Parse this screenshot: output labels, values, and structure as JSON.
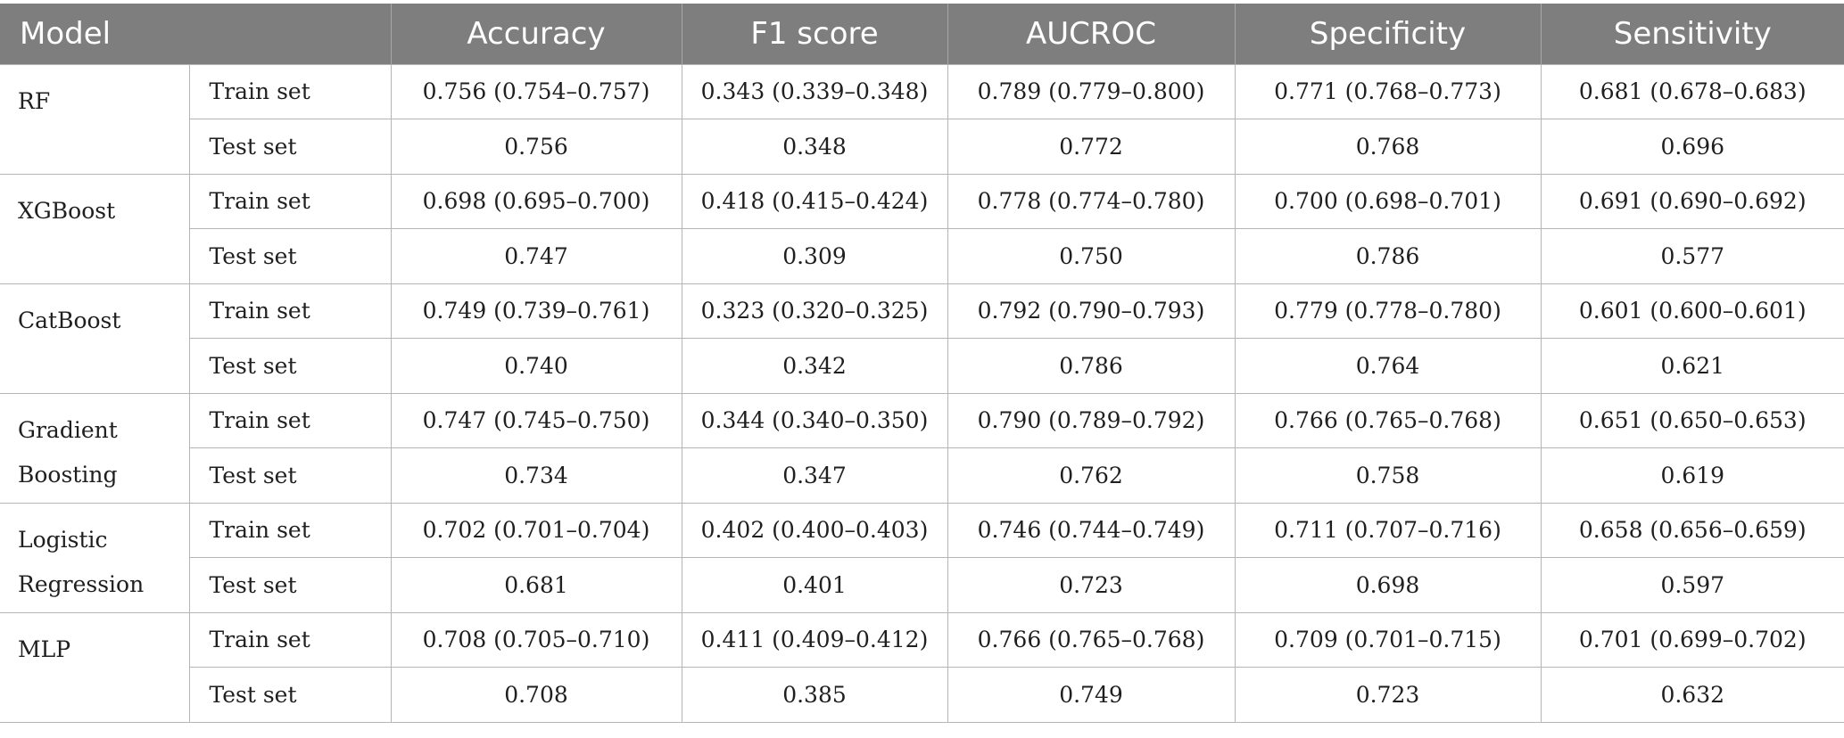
{
  "table": {
    "headers": {
      "model": "Model",
      "accuracy": "Accuracy",
      "f1": "F1 score",
      "aucroc": "AUCROC",
      "specificity": "Specificity",
      "sensitivity": "Sensitivity"
    },
    "models": [
      {
        "name": "RF",
        "rows": [
          {
            "set": "Train set",
            "accuracy": "0.756 (0.754–0.757)",
            "f1": "0.343 (0.339–0.348)",
            "aucroc": "0.789 (0.779–0.800)",
            "specificity": "0.771 (0.768–0.773)",
            "sensitivity": "0.681 (0.678–0.683)"
          },
          {
            "set": "Test set",
            "accuracy": "0.756",
            "f1": "0.348",
            "aucroc": "0.772",
            "specificity": "0.768",
            "sensitivity": "0.696"
          }
        ]
      },
      {
        "name": "XGBoost",
        "rows": [
          {
            "set": "Train set",
            "accuracy": "0.698 (0.695–0.700)",
            "f1": "0.418 (0.415–0.424)",
            "aucroc": "0.778 (0.774–0.780)",
            "specificity": "0.700 (0.698–0.701)",
            "sensitivity": "0.691 (0.690–0.692)"
          },
          {
            "set": "Test set",
            "accuracy": "0.747",
            "f1": "0.309",
            "aucroc": "0.750",
            "specificity": "0.786",
            "sensitivity": "0.577"
          }
        ]
      },
      {
        "name": "CatBoost",
        "rows": [
          {
            "set": "Train set",
            "accuracy": "0.749 (0.739–0.761)",
            "f1": "0.323 (0.320–0.325)",
            "aucroc": "0.792 (0.790–0.793)",
            "specificity": "0.779 (0.778–0.780)",
            "sensitivity": "0.601 (0.600–0.601)"
          },
          {
            "set": "Test set",
            "accuracy": "0.740",
            "f1": "0.342",
            "aucroc": "0.786",
            "specificity": "0.764",
            "sensitivity": "0.621"
          }
        ]
      },
      {
        "name": "Gradient Boosting",
        "rows": [
          {
            "set": "Train set",
            "accuracy": "0.747 (0.745–0.750)",
            "f1": "0.344 (0.340–0.350)",
            "aucroc": "0.790 (0.789–0.792)",
            "specificity": "0.766 (0.765–0.768)",
            "sensitivity": "0.651 (0.650–0.653)"
          },
          {
            "set": "Test set",
            "accuracy": "0.734",
            "f1": "0.347",
            "aucroc": "0.762",
            "specificity": "0.758",
            "sensitivity": "0.619"
          }
        ]
      },
      {
        "name": "Logistic Regression",
        "rows": [
          {
            "set": "Train set",
            "accuracy": "0.702 (0.701–0.704)",
            "f1": "0.402 (0.400–0.403)",
            "aucroc": "0.746 (0.744–0.749)",
            "specificity": "0.711 (0.707–0.716)",
            "sensitivity": "0.658 (0.656–0.659)"
          },
          {
            "set": "Test set",
            "accuracy": "0.681",
            "f1": "0.401",
            "aucroc": "0.723",
            "specificity": "0.698",
            "sensitivity": "0.597"
          }
        ]
      },
      {
        "name": "MLP",
        "rows": [
          {
            "set": "Train set",
            "accuracy": "0.708 (0.705–0.710)",
            "f1": "0.411 (0.409–0.412)",
            "aucroc": "0.766 (0.765–0.768)",
            "specificity": "0.709 (0.701–0.715)",
            "sensitivity": "0.701 (0.699–0.702)"
          },
          {
            "set": "Test set",
            "accuracy": "0.708",
            "f1": "0.385",
            "aucroc": "0.749",
            "specificity": "0.723",
            "sensitivity": "0.632"
          }
        ]
      }
    ]
  }
}
